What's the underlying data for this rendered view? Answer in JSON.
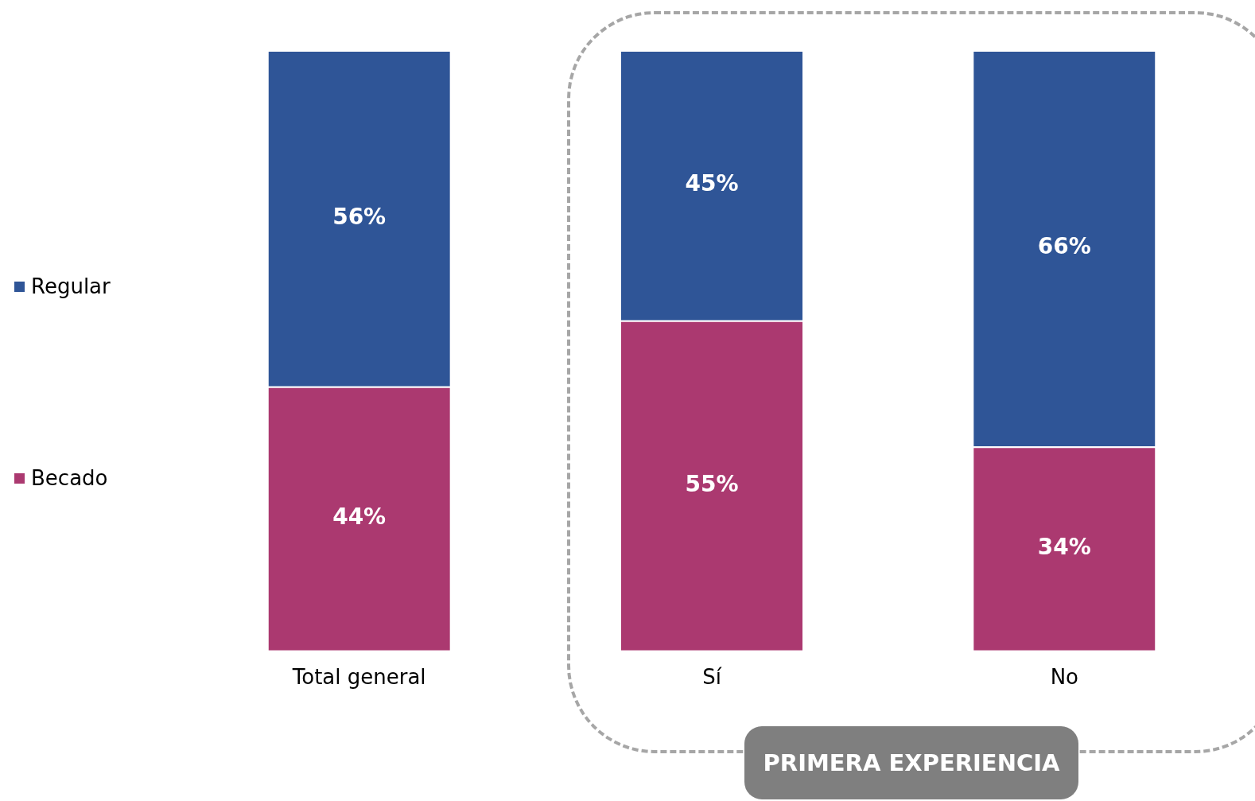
{
  "chart_data": {
    "type": "bar",
    "stacked": true,
    "categories": [
      "Total general",
      "Sí",
      "No"
    ],
    "series": [
      {
        "name": "Becado",
        "color": "#ab3970",
        "values": [
          44,
          55,
          34
        ],
        "value_labels": [
          "44%",
          "55%",
          "34%"
        ]
      },
      {
        "name": "Regular",
        "color": "#2f5597",
        "values": [
          56,
          45,
          66
        ],
        "value_labels": [
          "56%",
          "45%",
          "66%"
        ]
      }
    ],
    "ylim": [
      0,
      100
    ],
    "tick_labels": "x",
    "grid": false,
    "legend": "left",
    "annotations": [
      "PRIMERA EXPERIENCIA"
    ]
  }
}
